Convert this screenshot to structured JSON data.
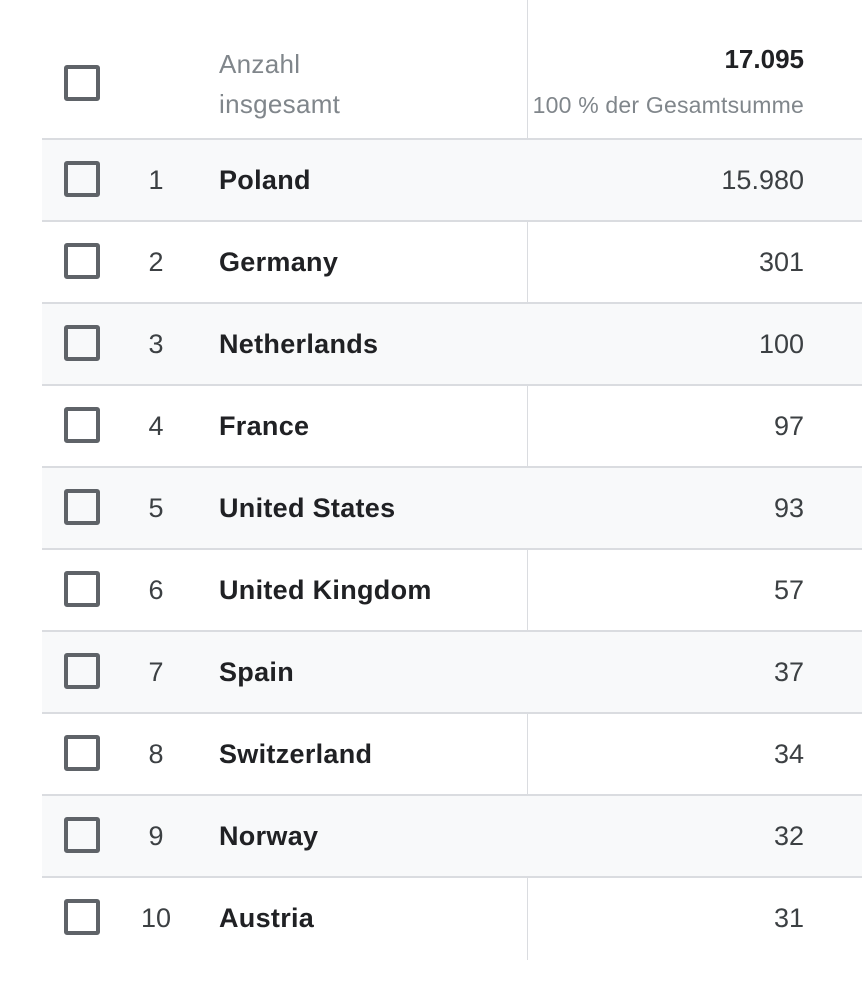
{
  "header": {
    "label_line1": "Anzahl",
    "label_line2": "insgesamt",
    "total": "17.095",
    "total_share": "100 % der Gesamtsumme"
  },
  "rows": [
    {
      "rank": "1",
      "country": "Poland",
      "value": "15.980"
    },
    {
      "rank": "2",
      "country": "Germany",
      "value": "301"
    },
    {
      "rank": "3",
      "country": "Netherlands",
      "value": "100"
    },
    {
      "rank": "4",
      "country": "France",
      "value": "97"
    },
    {
      "rank": "5",
      "country": "United States",
      "value": "93"
    },
    {
      "rank": "6",
      "country": "United Kingdom",
      "value": "57"
    },
    {
      "rank": "7",
      "country": "Spain",
      "value": "37"
    },
    {
      "rank": "8",
      "country": "Switzerland",
      "value": "34"
    },
    {
      "rank": "9",
      "country": "Norway",
      "value": "32"
    },
    {
      "rank": "10",
      "country": "Austria",
      "value": "31"
    }
  ],
  "colors": {
    "row_shade": "#f8f9fa",
    "divider": "#dadce0",
    "checkbox_border": "#5f6368",
    "muted_text": "#80868b"
  }
}
